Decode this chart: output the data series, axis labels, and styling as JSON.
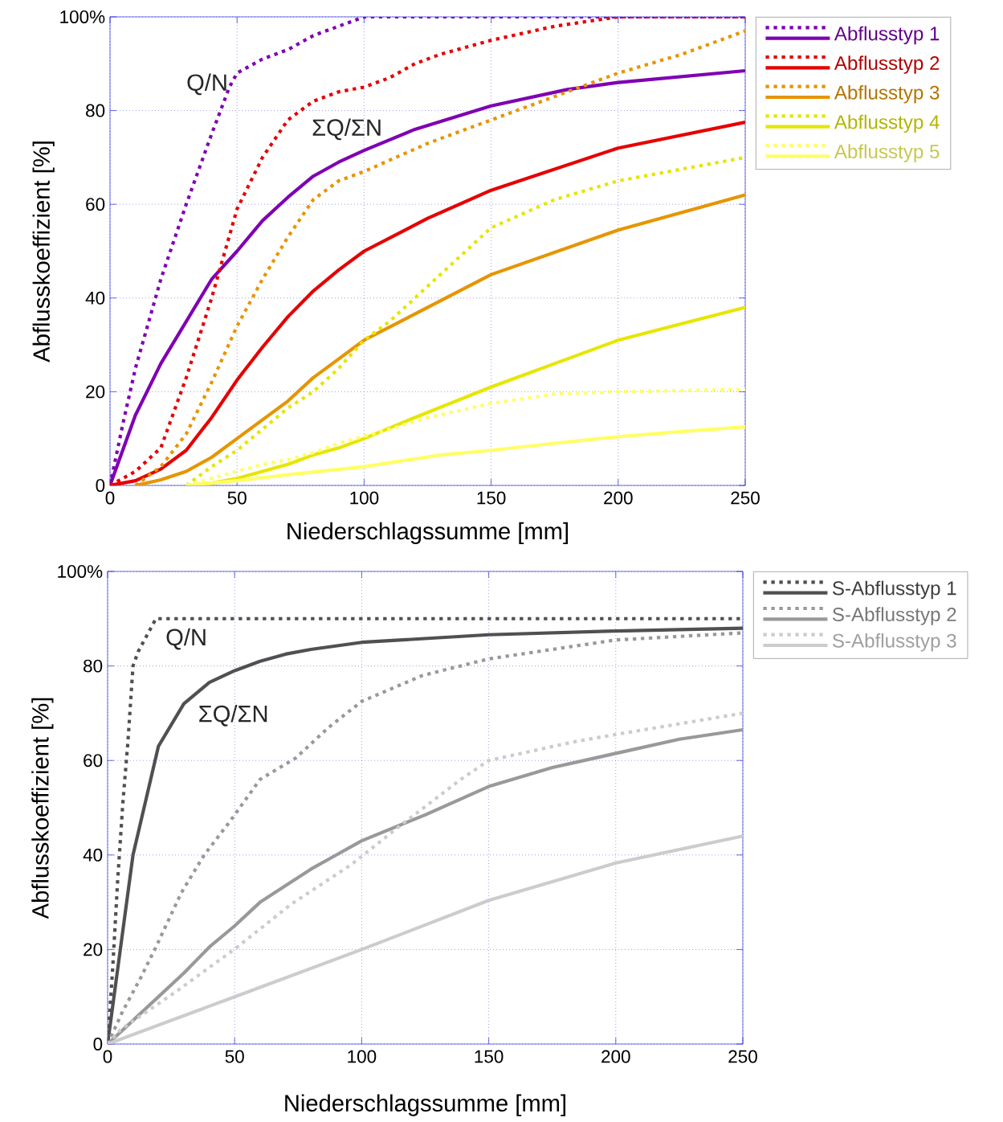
{
  "chart_data": [
    {
      "type": "line",
      "xlabel": "Niederschlagssumme [mm]",
      "ylabel": "Abflusskoeffizient [%]",
      "xlim": [
        0,
        250
      ],
      "ylim": [
        0,
        100
      ],
      "xticks": [
        0,
        50,
        100,
        150,
        200,
        250
      ],
      "yticks": [
        0,
        20,
        40,
        60,
        80,
        {
          "value": 100,
          "label": "100%"
        }
      ],
      "grid": true,
      "legend": "right",
      "annotations": [
        "Q/N",
        "ΣQ/ΣN"
      ],
      "series": [
        {
          "line_style": "dotted",
          "color": "#7f00b2",
          "x": [
            0,
            5,
            10,
            20,
            30,
            40,
            47,
            50,
            60,
            70,
            80,
            90,
            100,
            250
          ],
          "values": [
            0,
            13,
            25,
            44,
            60,
            75,
            85,
            88,
            91,
            93,
            96,
            98,
            100,
            100
          ]
        },
        {
          "name": "Abflusstyp 1",
          "line_style": "solid",
          "color": "#7f00b2",
          "x": [
            0,
            10,
            20,
            30,
            40,
            50,
            60,
            70,
            80,
            90,
            100,
            120,
            150,
            180,
            200,
            250
          ],
          "values": [
            0,
            15,
            26,
            35,
            44,
            50,
            56.5,
            61.5,
            66,
            69,
            71.5,
            76,
            81,
            84.5,
            86,
            88.5
          ]
        },
        {
          "line_style": "dotted",
          "color": "#e60000",
          "x": [
            0,
            10,
            20,
            30,
            40,
            50,
            60,
            70,
            80,
            90,
            100,
            110,
            120,
            130,
            150,
            175,
            200,
            250
          ],
          "values": [
            0,
            3,
            8,
            23,
            40,
            59,
            70,
            78,
            82,
            84,
            85,
            87,
            90,
            92,
            95,
            98,
            100,
            100
          ]
        },
        {
          "name": "Abflusstyp 2",
          "line_style": "solid",
          "color": "#e60000",
          "x": [
            0,
            10,
            20,
            30,
            40,
            50,
            60,
            70,
            80,
            90,
            100,
            125,
            150,
            200,
            250
          ],
          "values": [
            0,
            1,
            3.5,
            7.5,
            14.5,
            22.5,
            29.5,
            36,
            41.5,
            46,
            50,
            57,
            63,
            72,
            77.5
          ]
        },
        {
          "line_style": "dotted",
          "color": "#e69500",
          "x": [
            10,
            20,
            30,
            40,
            50,
            60,
            70,
            80,
            90,
            100,
            125,
            150,
            175,
            200,
            225,
            250
          ],
          "values": [
            0,
            4,
            11,
            22,
            34,
            44,
            53,
            61,
            65,
            67,
            73,
            78,
            83,
            88,
            92,
            97
          ]
        },
        {
          "name": "Abflusstyp 3",
          "line_style": "solid",
          "color": "#e69500",
          "x": [
            10,
            20,
            30,
            40,
            50,
            60,
            70,
            80,
            90,
            100,
            150,
            200,
            250
          ],
          "values": [
            0,
            1.2,
            3,
            6,
            10,
            14,
            18,
            23,
            27,
            31,
            45,
            54.5,
            62
          ]
        },
        {
          "line_style": "dotted",
          "color": "#e6e600",
          "x": [
            30,
            40,
            50,
            60,
            70,
            80,
            90,
            100,
            110,
            120,
            130,
            140,
            150,
            175,
            200,
            225,
            250
          ],
          "values": [
            0,
            4,
            7.5,
            12,
            16.5,
            20,
            25,
            31,
            35,
            40,
            45,
            50,
            55,
            61,
            65,
            67.5,
            70
          ]
        },
        {
          "name": "Abflusstyp 4",
          "line_style": "solid",
          "color": "#e6e600",
          "x": [
            30,
            40,
            50,
            60,
            70,
            80,
            90,
            100,
            120,
            150,
            175,
            200,
            225,
            250
          ],
          "values": [
            0,
            0.5,
            1.5,
            3,
            4.5,
            6.5,
            8,
            10,
            14.5,
            21,
            26,
            31,
            34.5,
            38
          ]
        },
        {
          "line_style": "dotted",
          "color": "#ffff66",
          "x": [
            30,
            40,
            50,
            60,
            70,
            80,
            90,
            100,
            110,
            125,
            150,
            175,
            200,
            250
          ],
          "values": [
            0,
            1.5,
            3,
            4.5,
            5.5,
            7,
            9,
            10.5,
            12,
            14.5,
            17.5,
            19.5,
            20,
            20.5
          ]
        },
        {
          "name": "Abflusstyp 5",
          "line_style": "solid",
          "color": "#ffff66",
          "x": [
            30,
            50,
            70,
            100,
            130,
            150,
            175,
            200,
            225,
            250
          ],
          "values": [
            0,
            1,
            2.3,
            4,
            6.5,
            7.5,
            9,
            10.4,
            11.5,
            12.5
          ]
        }
      ]
    },
    {
      "type": "line",
      "xlabel": "Niederschlagssumme [mm]",
      "ylabel": "Abflusskoeffizient [%]",
      "xlim": [
        0,
        250
      ],
      "ylim": [
        0,
        100
      ],
      "xticks": [
        0,
        50,
        100,
        150,
        200,
        250
      ],
      "yticks": [
        0,
        20,
        40,
        60,
        80,
        {
          "value": 100,
          "label": "100%"
        }
      ],
      "grid": true,
      "legend": "right",
      "annotations": [
        "Q/N",
        "ΣQ/ΣN"
      ],
      "series": [
        {
          "line_style": "dotted",
          "color": "#505050",
          "x": [
            0,
            2,
            4,
            6,
            8,
            10,
            12,
            15,
            19,
            250
          ],
          "values": [
            0,
            16,
            35,
            51,
            64,
            80,
            83,
            86,
            90,
            90
          ]
        },
        {
          "name": "S-Abflusstyp 1",
          "line_style": "solid",
          "color": "#505050",
          "x": [
            0,
            10,
            20,
            30,
            40,
            50,
            60,
            70,
            80,
            100,
            150,
            200,
            250
          ],
          "values": [
            0,
            40,
            63,
            72,
            76.5,
            79,
            81,
            82.5,
            83.5,
            85,
            86.6,
            87.4,
            88
          ]
        },
        {
          "line_style": "dotted",
          "color": "#999999",
          "x": [
            0,
            6,
            13,
            19,
            29,
            38,
            48,
            60,
            74,
            87,
            100,
            124,
            150,
            175,
            200,
            250
          ],
          "values": [
            0,
            7,
            14,
            20.5,
            32,
            40,
            47,
            56,
            60.5,
            67,
            72.5,
            78,
            81.5,
            83.5,
            85.5,
            87
          ]
        },
        {
          "name": "S-Abflusstyp 2",
          "line_style": "solid",
          "color": "#999999",
          "x": [
            0,
            10,
            20,
            30,
            40,
            50,
            60,
            70,
            80,
            90,
            100,
            125,
            150,
            175,
            200,
            225,
            250
          ],
          "values": [
            0,
            5,
            10,
            15,
            20.5,
            25,
            30,
            33.5,
            37,
            40,
            43,
            48.5,
            54.5,
            58.5,
            61.5,
            64.5,
            66.5
          ]
        },
        {
          "line_style": "dotted",
          "color": "#cccccc",
          "x": [
            0,
            5,
            28,
            51,
            72,
            96,
            117,
            122,
            139,
            150,
            184,
            200,
            250
          ],
          "values": [
            0,
            3,
            11.5,
            20.5,
            29.5,
            38,
            47,
            49,
            56,
            60,
            64,
            65.5,
            70
          ]
        },
        {
          "name": "S-Abflusstyp 3",
          "line_style": "solid",
          "color": "#cccccc",
          "x": [
            0,
            50,
            100,
            150,
            200,
            250
          ],
          "values": [
            0,
            10,
            20,
            30.4,
            38.3,
            44
          ]
        }
      ]
    }
  ]
}
